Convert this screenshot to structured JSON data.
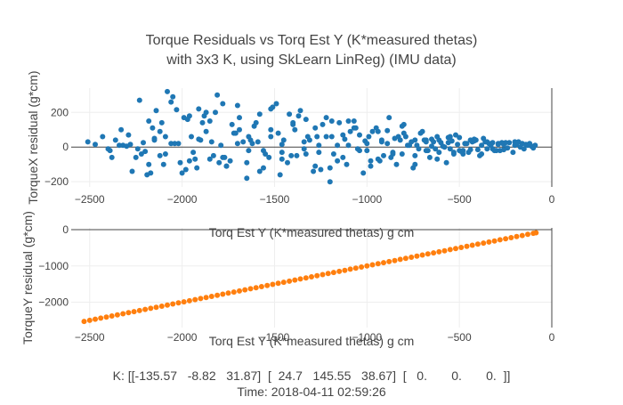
{
  "title_line1": "Torque Residuals vs Torq Est Y (K*measured thetas)",
  "title_line2": "with 3x3 K, using SkLearn LinReg) (IMU data)",
  "footer": {
    "k_text": "K: [[-135.57   -8.82   31.87]  [  24.7   145.55   38.67]  [   0.       0.       0.  ]]",
    "time_text": "Time: 2018-04-11 02:59:26"
  },
  "colors": {
    "series1": "#1f77b4",
    "series2": "#ff7f0e",
    "grid": "#eeeeee",
    "axis": "#444444"
  },
  "chart_data": [
    {
      "type": "scatter",
      "xlabel": "Torq Est Y (K*measured thetas) g cm",
      "ylabel": "TorqueX residual (g*cm)",
      "xlim": [
        -2600,
        0
      ],
      "ylim": [
        -230,
        340
      ],
      "xticks": [
        -2500,
        -2000,
        -1500,
        -1000,
        -500,
        0
      ],
      "xtick_labels": [
        "−2500",
        "−2000",
        "−1500",
        "−1000",
        "−500",
        "0"
      ],
      "yticks": [
        -200,
        0,
        200
      ],
      "ytick_labels": [
        "−200",
        "0",
        "200"
      ],
      "grid": true,
      "series": [
        {
          "color": "#1f77b4",
          "x": [
            -2510,
            -2470,
            -2430,
            -2390,
            -2360,
            -2320,
            -2290,
            -2250,
            -2210,
            -2180,
            -2150,
            -2120,
            -2090,
            -2060,
            -2030,
            -2000,
            -1970,
            -1940,
            -1910,
            -1880,
            -1850,
            -1820,
            -1790,
            -1760,
            -1730,
            -1700,
            -1670,
            -1640,
            -1610,
            -1580,
            -1550,
            -1520,
            -1490,
            -1460,
            -1430,
            -1400,
            -1370,
            -1340,
            -1310,
            -1280,
            -1250,
            -1220,
            -1190,
            -1160,
            -1130,
            -1100,
            -1070,
            -1040,
            -1010,
            -980,
            -950,
            -920,
            -890,
            -860,
            -830,
            -800,
            -770,
            -740,
            -710,
            -680,
            -650,
            -620,
            -590,
            -560,
            -530,
            -500,
            -470,
            -440,
            -410,
            -380,
            -350,
            -320,
            -290,
            -260,
            -230,
            -200,
            -170,
            -140,
            -110,
            -90,
            -2380,
            -2330,
            -2270,
            -2230,
            -2190,
            -2140,
            -2100,
            -2050,
            -2010,
            -1960,
            -1920,
            -1870,
            -1830,
            -1780,
            -1740,
            -1690,
            -1650,
            -1600,
            -1560,
            -1510,
            -1470,
            -1420,
            -1380,
            -1330,
            -1290,
            -1240,
            -1200,
            -1150,
            -1110,
            -1060,
            -1020,
            -970,
            -930,
            -880,
            -840,
            -790,
            -750,
            -700,
            -660,
            -610,
            -570,
            -520,
            -480,
            -430,
            -390,
            -340,
            -300,
            -250,
            -210,
            -160,
            -2400,
            -2340,
            -2180,
            -2120,
            -2060,
            -1990,
            -1930,
            -1870,
            -1810,
            -1760,
            -1700,
            -1640,
            -1580,
            -1520,
            -1460,
            -1400,
            -1340,
            -1280,
            -1220,
            -1160,
            -1100,
            -1040,
            -980,
            -920,
            -860,
            -800,
            -740,
            -680,
            -620,
            -560,
            -500,
            -440,
            -380,
            -320,
            -260,
            -200,
            -2300,
            -2240,
            -2170,
            -2110,
            -2040,
            -1980,
            -1910,
            -1850,
            -1780,
            -1720,
            -1650,
            -1590,
            -1520,
            -1460,
            -1390,
            -1330,
            -1260,
            -1200,
            -1130,
            -1070,
            -1000,
            -940,
            -870,
            -810,
            -740,
            -680,
            -610,
            -550,
            -480,
            -420,
            -350,
            -290,
            -2200,
            -2150,
            -2080,
            -1950,
            -1890,
            -1800,
            -1710,
            -1620,
            -1530,
            -1450,
            -1360,
            -1270,
            -1180,
            -1090,
            -1000,
            -910,
            -820,
            -730,
            -640,
            -550,
            -460,
            -370,
            -280,
            -190,
            -130,
            -100,
            -120,
            -150,
            -180,
            -240,
            -270,
            -310,
            -330,
            -360,
            -400,
            -420,
            -450,
            -470,
            -490,
            -510,
            -530,
            -540,
            -580,
            -600,
            -630,
            -650,
            -670,
            -690,
            -720,
            -760,
            -780,
            -810,
            -850,
            -890,
            -940,
            -990,
            -1050,
            -1120,
            -1190,
            -1260,
            -1320,
            -1410,
            -1480,
            -1560,
            -1630,
            -1690,
            -1770,
            -1840,
            -1900,
            -1960,
            -2020,
            -2090,
            -2160,
            -2220,
            -2280
          ],
          "y": [
            30,
            15,
            60,
            -20,
            40,
            10,
            70,
            -60,
            25,
            -100,
            50,
            90,
            -40,
            20,
            215,
            -150,
            160,
            -30,
            45,
            180,
            -70,
            200,
            10,
            -110,
            130,
            240,
            30,
            -20,
            120,
            190,
            -40,
            60,
            250,
            15,
            -90,
            130,
            180,
            -10,
            40,
            110,
            -130,
            170,
            60,
            10,
            -60,
            150,
            110,
            -20,
            35,
            -80,
            110,
            30,
            95,
            -40,
            60,
            130,
            10,
            40,
            80,
            -20,
            45,
            60,
            5,
            25,
            -30,
            55,
            20,
            -15,
            40,
            10,
            30,
            -10,
            20,
            15,
            25,
            10,
            0,
            15,
            5,
            10,
            -60,
            100,
            -140,
            270,
            -160,
            210,
            -100,
            290,
            -90,
            180,
            -120,
            200,
            -50,
            250,
            -80,
            170,
            -180,
            140,
            -120,
            230,
            -160,
            190,
            -50,
            160,
            -140,
            130,
            -200,
            140,
            -100,
            110,
            -150,
            90,
            -80,
            170,
            -100,
            60,
            -120,
            90,
            -60,
            40,
            -90,
            70,
            -40,
            30,
            -50,
            20,
            -20,
            25,
            -30,
            20,
            -10,
            10,
            150,
            -50,
            260,
            170,
            -70,
            90,
            300,
            -110,
            20,
            60,
            -140,
            100,
            -30,
            140,
            30,
            -110,
            60,
            -80,
            10,
            70,
            -110,
            40,
            -30,
            80,
            -50,
            30,
            -70,
            55,
            -20,
            40,
            -40,
            25,
            -15,
            30,
            5,
            -10,
            -150,
            140,
            20,
            -130,
            220,
            150,
            -60,
            80,
            -90,
            30,
            220,
            -70,
            100,
            -40,
            10,
            -120,
            70,
            150,
            -20,
            90,
            -60,
            120,
            -100,
            40,
            -30,
            60,
            -20,
            35,
            -10,
            15,
            -25,
            40,
            320,
            60,
            140,
            -90,
            80,
            20,
            -60,
            40,
            210,
            60,
            -40,
            90,
            20,
            -50,
            40,
            10,
            30,
            -10,
            20,
            50,
            -20,
            15,
            10,
            -5,
            20,
            -10,
            30,
            -5,
            25,
            -20,
            10,
            30,
            -15,
            45,
            -30,
            20,
            -25,
            15,
            -40,
            35,
            0,
            25,
            -10,
            5,
            -20,
            40,
            -10,
            30,
            10,
            -40,
            50,
            20,
            -70,
            60,
            -10,
            45,
            150,
            -30,
            60,
            -50,
            80,
            -20,
            40,
            100,
            -60,
            30,
            40,
            -80,
            20,
            60,
            110,
            -40,
            15
          ]
        }
      ]
    },
    {
      "type": "scatter",
      "xlabel": "Torq Est Y (K*measured thetas) g cm",
      "ylabel": "TorqueY residual (g*cm)",
      "xlim": [
        -2600,
        0
      ],
      "ylim": [
        -2700,
        50
      ],
      "xticks": [
        -2500,
        -2000,
        -1500,
        -1000,
        -500,
        0
      ],
      "xtick_labels": [
        "−2500",
        "−2000",
        "−1500",
        "−1000",
        "−500",
        "0"
      ],
      "yticks": [
        -2000,
        -1000,
        0
      ],
      "ytick_labels": [
        "−2000",
        "−1000",
        "0"
      ],
      "grid": true,
      "series": [
        {
          "color": "#ff7f0e",
          "x": [
            -2530,
            -2500,
            -2470,
            -2440,
            -2410,
            -2380,
            -2350,
            -2320,
            -2290,
            -2260,
            -2230,
            -2200,
            -2170,
            -2140,
            -2110,
            -2080,
            -2050,
            -2020,
            -1990,
            -1960,
            -1930,
            -1900,
            -1870,
            -1840,
            -1810,
            -1780,
            -1750,
            -1720,
            -1690,
            -1660,
            -1630,
            -1600,
            -1570,
            -1540,
            -1510,
            -1480,
            -1450,
            -1420,
            -1390,
            -1360,
            -1330,
            -1300,
            -1270,
            -1240,
            -1210,
            -1180,
            -1150,
            -1120,
            -1090,
            -1060,
            -1030,
            -1000,
            -970,
            -940,
            -910,
            -880,
            -850,
            -820,
            -790,
            -760,
            -730,
            -700,
            -670,
            -640,
            -610,
            -580,
            -550,
            -520,
            -490,
            -460,
            -430,
            -400,
            -370,
            -340,
            -310,
            -280,
            -250,
            -220,
            -190,
            -160,
            -130,
            -100,
            -85
          ],
          "y": [
            -2530,
            -2500,
            -2470,
            -2440,
            -2410,
            -2380,
            -2350,
            -2320,
            -2290,
            -2260,
            -2230,
            -2200,
            -2170,
            -2140,
            -2110,
            -2080,
            -2050,
            -2020,
            -1990,
            -1960,
            -1930,
            -1900,
            -1870,
            -1840,
            -1810,
            -1780,
            -1750,
            -1720,
            -1690,
            -1660,
            -1630,
            -1600,
            -1570,
            -1540,
            -1510,
            -1480,
            -1450,
            -1420,
            -1390,
            -1360,
            -1330,
            -1300,
            -1270,
            -1240,
            -1210,
            -1180,
            -1150,
            -1120,
            -1090,
            -1060,
            -1030,
            -1000,
            -970,
            -940,
            -910,
            -880,
            -850,
            -820,
            -790,
            -760,
            -730,
            -700,
            -670,
            -640,
            -610,
            -580,
            -550,
            -520,
            -490,
            -460,
            -430,
            -400,
            -370,
            -340,
            -310,
            -280,
            -250,
            -220,
            -190,
            -160,
            -130,
            -100,
            -85
          ]
        }
      ]
    }
  ]
}
